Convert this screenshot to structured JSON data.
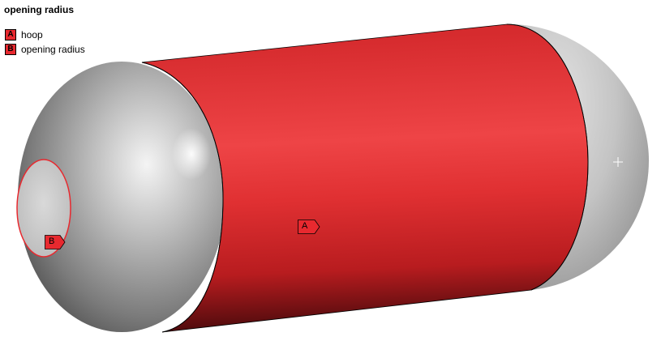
{
  "title": "opening radius",
  "legend": [
    {
      "key": "A",
      "label": "hoop"
    },
    {
      "key": "B",
      "label": "opening radius"
    }
  ],
  "tags": {
    "a": "A",
    "b": "B"
  },
  "colors": {
    "selection": "#e8292f",
    "body": "#c0c0c0"
  }
}
